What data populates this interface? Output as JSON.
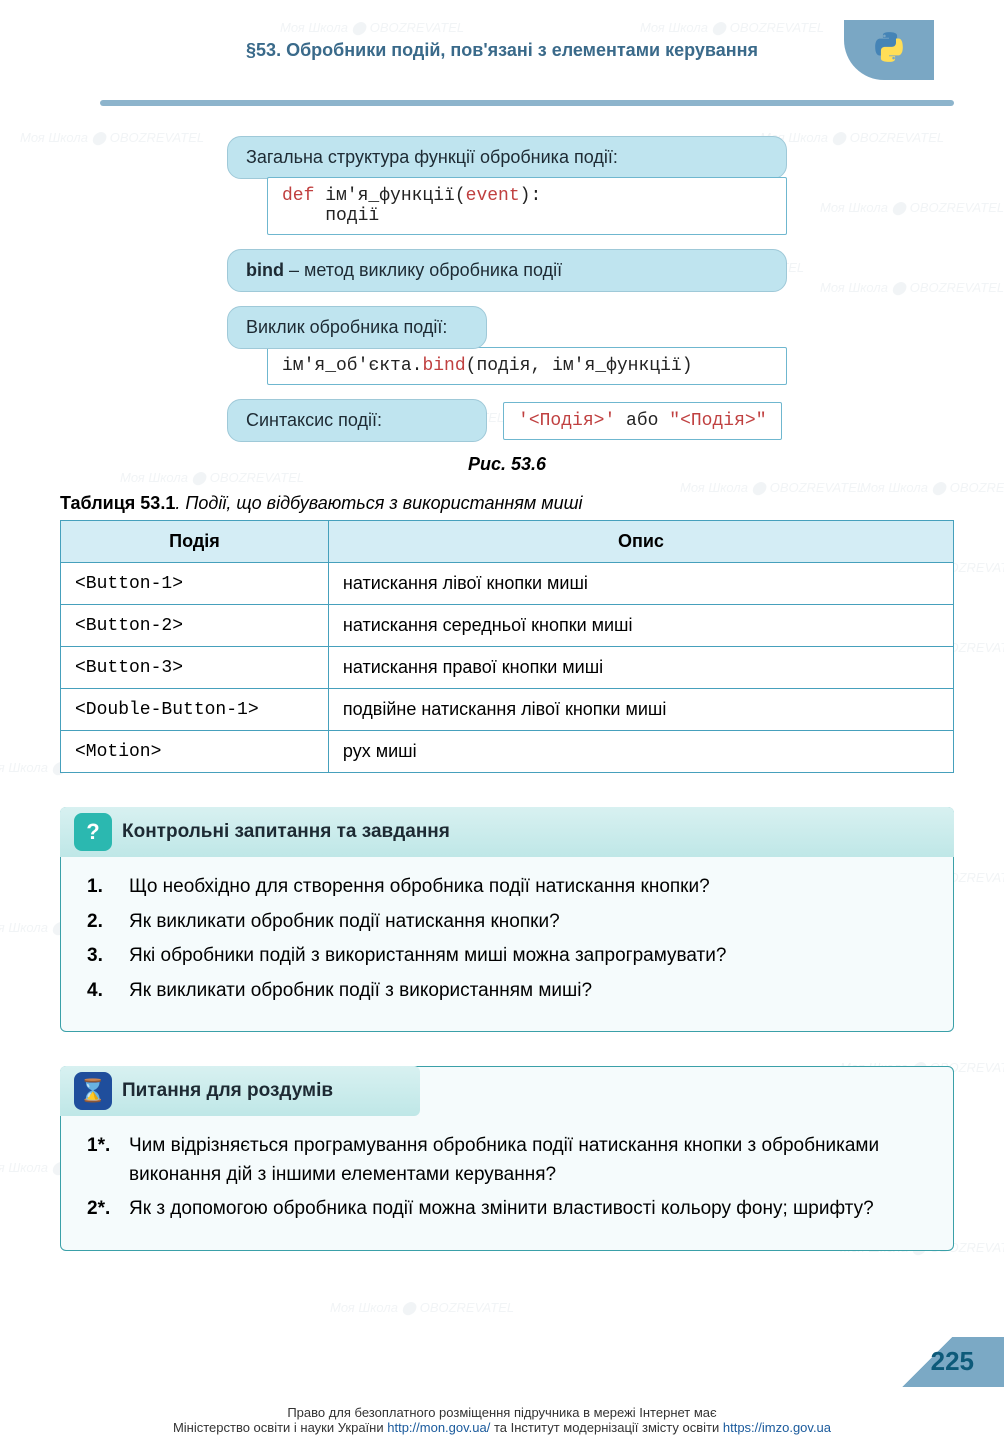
{
  "header": {
    "section_title": "§53. Обробники подій, пов'язані з елементами керування"
  },
  "diagram": {
    "box1": {
      "title": "Загальна структура функції обробника події:",
      "code_def": "def",
      "code_name": " ім'я_функції",
      "code_paren_open": "(",
      "code_event": "event",
      "code_paren_close": "):",
      "code_body": "події"
    },
    "box2": {
      "bold": "bind",
      "rest": " – метод виклику обробника події"
    },
    "box3": {
      "title": "Виклик обробника події:",
      "code_obj": "ім'я_об'єкта.",
      "code_bind": "bind",
      "code_args": "(подія, ім'я_функції)"
    },
    "box4": {
      "title": "Синтаксис події:",
      "code_q1": "'",
      "code_ev1": "<Подія>",
      "code_q2": "'",
      "code_or": " або ",
      "code_q3": "\"",
      "code_ev2": "<Подія>",
      "code_q4": "\""
    },
    "caption": "Рис. 53.6"
  },
  "table": {
    "caption_bold": "Таблиця 53.1",
    "caption_rest": ". Події, що відбуваються з використанням миші",
    "columns": [
      "Подія",
      "Опис"
    ],
    "rows": [
      [
        "<Button-1>",
        "натискання лівої кнопки миші"
      ],
      [
        "<Button-2>",
        "натискання середньої кнопки миші"
      ],
      [
        "<Button-3>",
        "натискання правої кнопки миші"
      ],
      [
        "<Double-Button-1>",
        "подвійне натискання лівої кнопки миші"
      ],
      [
        "<Motion>",
        "рух миші"
      ]
    ],
    "header_bg": "#d4edf5",
    "border_color": "#46a0bc"
  },
  "questions_block": {
    "title": "Контрольні запитання та завдання",
    "badge": "?",
    "items": [
      {
        "n": "1.",
        "t": "Що необхідно для створення обробника події натискання кнопки?"
      },
      {
        "n": "2.",
        "t": "Як викликати обробник події натискання кнопки?"
      },
      {
        "n": "3.",
        "t": "Які обробники подій з використанням миші можна запрограмувати?"
      },
      {
        "n": "4.",
        "t": "Як викликати обробник події з використанням миші?"
      }
    ]
  },
  "reflection_block": {
    "title": "Питання для роздумів",
    "badge": "⌛",
    "items": [
      {
        "n": "1*.",
        "t": "Чим відрізняється програмування обробника події натискання кнопки з обробниками виконання дій з іншими елементами керування?"
      },
      {
        "n": "2*.",
        "t": "Як з допомогою обробника події можна змінити властивості кольору фону; шрифту?"
      }
    ]
  },
  "page_number": "225",
  "footer": {
    "line1": "Право для безоплатного розміщення підручника в мережі Інтернет має",
    "line2_a": "Міністерство освіти і науки України ",
    "line2_link1": "http://mon.gov.ua/",
    "line2_b": " та Інститут модернізації змісту освіти ",
    "line2_link2": "https://imzo.gov.ua"
  },
  "watermark_text": "Моя Школа ⬤ OBOZREVATEL"
}
